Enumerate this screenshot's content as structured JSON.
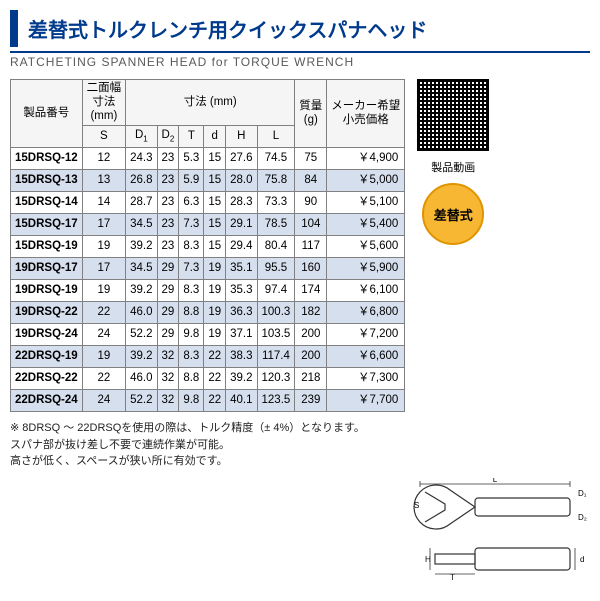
{
  "header": {
    "title_ja": "差替式トルクレンチ用クイックスパナヘッド",
    "subtitle_en": "RATCHETING SPANNER HEAD for TORQUE WRENCH"
  },
  "table": {
    "headers": {
      "product_no": "製品番号",
      "width_across": "二面幅\n寸法\n(mm)",
      "dimensions": "寸法 (mm)",
      "mass": "質量\n(g)",
      "price": "メーカー希望\n小売価格",
      "s": "S",
      "d1": "D₁",
      "d2": "D₂",
      "t": "T",
      "d": "d",
      "h": "H",
      "l": "L"
    },
    "rows": [
      {
        "pn": "15DRSQ-12",
        "s": "12",
        "d1": "24.3",
        "d2": "23",
        "t": "5.3",
        "d": "15",
        "h": "27.6",
        "l": "74.5",
        "g": "75",
        "price": "￥4,900",
        "alt": false
      },
      {
        "pn": "15DRSQ-13",
        "s": "13",
        "d1": "26.8",
        "d2": "23",
        "t": "5.9",
        "d": "15",
        "h": "28.0",
        "l": "75.8",
        "g": "84",
        "price": "￥5,000",
        "alt": true
      },
      {
        "pn": "15DRSQ-14",
        "s": "14",
        "d1": "28.7",
        "d2": "23",
        "t": "6.3",
        "d": "15",
        "h": "28.3",
        "l": "73.3",
        "g": "90",
        "price": "￥5,100",
        "alt": false
      },
      {
        "pn": "15DRSQ-17",
        "s": "17",
        "d1": "34.5",
        "d2": "23",
        "t": "7.3",
        "d": "15",
        "h": "29.1",
        "l": "78.5",
        "g": "104",
        "price": "￥5,400",
        "alt": true
      },
      {
        "pn": "15DRSQ-19",
        "s": "19",
        "d1": "39.2",
        "d2": "23",
        "t": "8.3",
        "d": "15",
        "h": "29.4",
        "l": "80.4",
        "g": "117",
        "price": "￥5,600",
        "alt": false
      },
      {
        "pn": "19DRSQ-17",
        "s": "17",
        "d1": "34.5",
        "d2": "29",
        "t": "7.3",
        "d": "19",
        "h": "35.1",
        "l": "95.5",
        "g": "160",
        "price": "￥5,900",
        "alt": true
      },
      {
        "pn": "19DRSQ-19",
        "s": "19",
        "d1": "39.2",
        "d2": "29",
        "t": "8.3",
        "d": "19",
        "h": "35.3",
        "l": "97.4",
        "g": "174",
        "price": "￥6,100",
        "alt": false
      },
      {
        "pn": "19DRSQ-22",
        "s": "22",
        "d1": "46.0",
        "d2": "29",
        "t": "8.8",
        "d": "19",
        "h": "36.3",
        "l": "100.3",
        "g": "182",
        "price": "￥6,800",
        "alt": true
      },
      {
        "pn": "19DRSQ-24",
        "s": "24",
        "d1": "52.2",
        "d2": "29",
        "t": "9.8",
        "d": "19",
        "h": "37.1",
        "l": "103.5",
        "g": "200",
        "price": "￥7,200",
        "alt": false
      },
      {
        "pn": "22DRSQ-19",
        "s": "19",
        "d1": "39.2",
        "d2": "32",
        "t": "8.3",
        "d": "22",
        "h": "38.3",
        "l": "117.4",
        "g": "200",
        "price": "￥6,600",
        "alt": true
      },
      {
        "pn": "22DRSQ-22",
        "s": "22",
        "d1": "46.0",
        "d2": "32",
        "t": "8.8",
        "d": "22",
        "h": "39.2",
        "l": "120.3",
        "g": "218",
        "price": "￥7,300",
        "alt": false
      },
      {
        "pn": "22DRSQ-24",
        "s": "24",
        "d1": "52.2",
        "d2": "32",
        "t": "9.8",
        "d": "22",
        "h": "40.1",
        "l": "123.5",
        "g": "239",
        "price": "￥7,700",
        "alt": true
      }
    ]
  },
  "side": {
    "qr_label": "製品動画",
    "badge_text": "差替式"
  },
  "notes": {
    "line1": "※ 8DRSQ ～ 22DRSQを使用の際は、トルク精度（± 4%）となります。",
    "line2": "スパナ部が抜け差し不要で連続作業が可能。",
    "line3": "高さが低く、スペースが狭い所に有効です。"
  },
  "diagram": {
    "labels": {
      "L": "L",
      "D1": "D₁",
      "D2": "D₂",
      "S": "S",
      "H": "H",
      "T": "T",
      "d": "d"
    }
  }
}
